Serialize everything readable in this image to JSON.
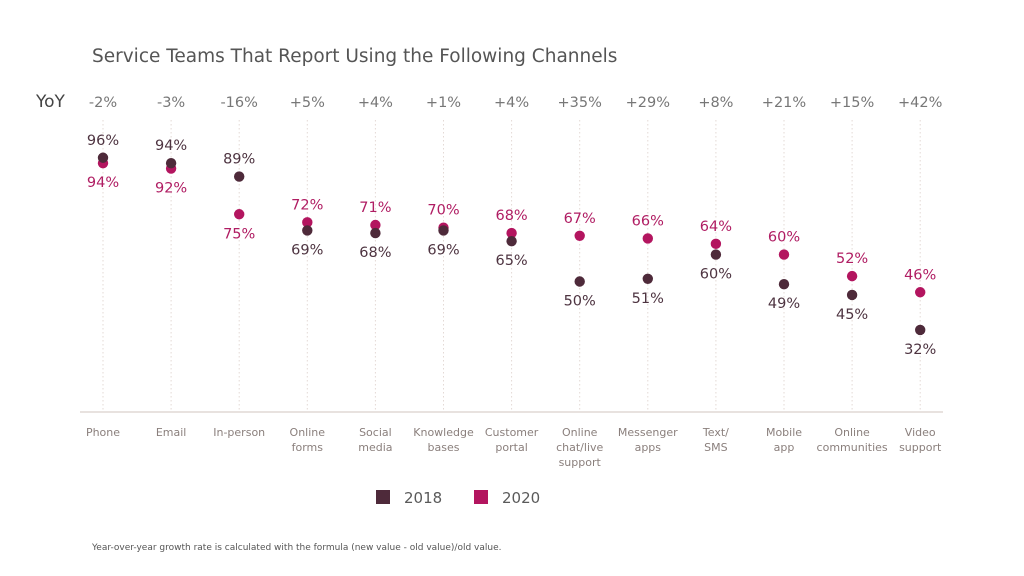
{
  "chart_data": {
    "type": "scatter",
    "title": "Service Teams That Report Using the Following Channels",
    "yoy_label": "YoY",
    "categories": [
      [
        "Phone"
      ],
      [
        "Email"
      ],
      [
        "In-person"
      ],
      [
        "Online",
        "forms"
      ],
      [
        "Social",
        "media"
      ],
      [
        "Knowledge",
        "bases"
      ],
      [
        "Customer",
        "portal"
      ],
      [
        "Online",
        "chat/live",
        "support"
      ],
      [
        "Messenger",
        "apps"
      ],
      [
        "Text/",
        "SMS"
      ],
      [
        "Mobile",
        "app"
      ],
      [
        "Online",
        "communities"
      ],
      [
        "Video",
        "support"
      ]
    ],
    "yoy": [
      "-2%",
      "-3%",
      "-16%",
      "+5%",
      "+4%",
      "+1%",
      "+4%",
      "+35%",
      "+29%",
      "+8%",
      "+21%",
      "+15%",
      "+42%"
    ],
    "series": [
      {
        "name": "2018",
        "color": "#4e2a3a",
        "values": [
          96,
          94,
          89,
          69,
          68,
          69,
          65,
          50,
          51,
          60,
          49,
          45,
          32
        ]
      },
      {
        "name": "2020",
        "color": "#b3155f",
        "values": [
          94,
          92,
          75,
          72,
          71,
          70,
          68,
          67,
          66,
          64,
          60,
          52,
          46
        ]
      }
    ],
    "value_suffix": "%",
    "ylim": [
      0,
      100
    ],
    "grid": "vertical dotted lines per category",
    "legend": "bottom-center",
    "xlabel": "",
    "ylabel": ""
  },
  "footnote": "Year-over-year growth rate is calculated with the formula (new value - old value)/old value."
}
